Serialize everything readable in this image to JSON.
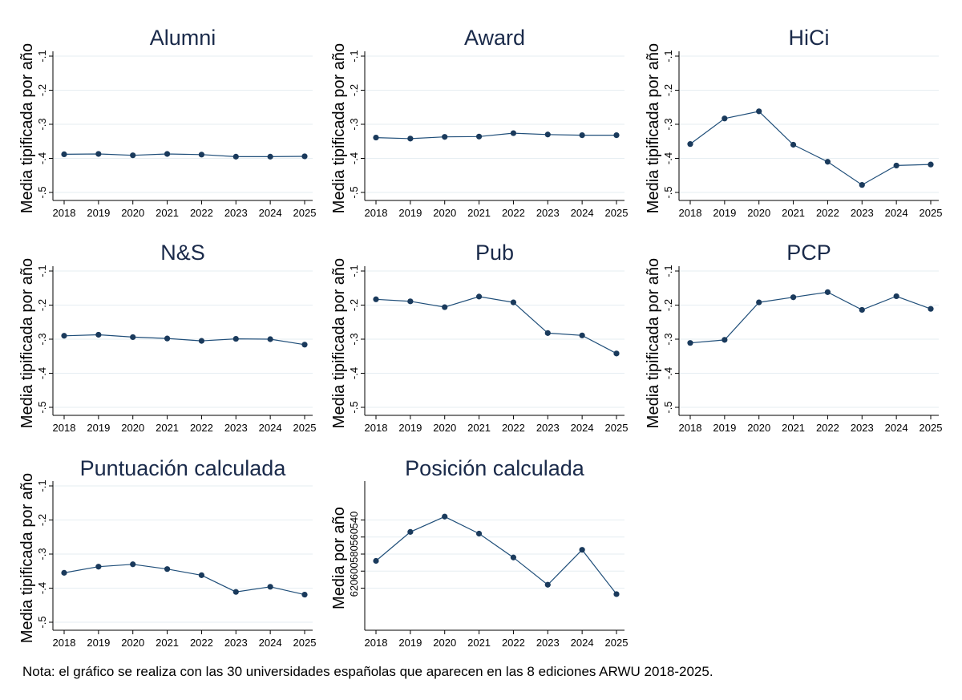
{
  "note": "Nota: el gráfico se realiza con las 30 universidades españolas que aparecen en las 8 ediciones ARWU 2018-2025.",
  "style": {
    "line_color": "#1f4e79",
    "marker_color": "#1a3a5c",
    "grid_color": "#e6eef2",
    "axis_color": "#000000",
    "title_color": "#1a2a4a"
  },
  "chart_data": [
    {
      "type": "line",
      "title": "Alumni",
      "ylabel": "Media tipificada por año",
      "x": [
        2018,
        2019,
        2020,
        2021,
        2022,
        2023,
        2024,
        2025
      ],
      "y": [
        -0.388,
        -0.387,
        -0.391,
        -0.387,
        -0.389,
        -0.395,
        -0.395,
        -0.394
      ],
      "ylim": [
        -0.5,
        -0.1
      ],
      "yticks": [
        -0.5,
        -0.4,
        -0.3,
        -0.2,
        -0.1
      ],
      "yticklabels": [
        "-.5",
        "-.4",
        "-.3",
        "-.2",
        "-.1"
      ],
      "y_reversed": false,
      "grid": true
    },
    {
      "type": "line",
      "title": "Award",
      "ylabel": "Media tipificada por año",
      "x": [
        2018,
        2019,
        2020,
        2021,
        2022,
        2023,
        2024,
        2025
      ],
      "y": [
        -0.339,
        -0.342,
        -0.337,
        -0.336,
        -0.326,
        -0.33,
        -0.332,
        -0.332
      ],
      "ylim": [
        -0.5,
        -0.1
      ],
      "yticks": [
        -0.5,
        -0.4,
        -0.3,
        -0.2,
        -0.1
      ],
      "yticklabels": [
        "-.5",
        "-.4",
        "-.3",
        "-.2",
        "-.1"
      ],
      "y_reversed": false,
      "grid": true
    },
    {
      "type": "line",
      "title": "HiCi",
      "ylabel": "Media tipificada por año",
      "x": [
        2018,
        2019,
        2020,
        2021,
        2022,
        2023,
        2024,
        2025
      ],
      "y": [
        -0.358,
        -0.283,
        -0.262,
        -0.36,
        -0.41,
        -0.478,
        -0.421,
        -0.418
      ],
      "ylim": [
        -0.5,
        -0.1
      ],
      "yticks": [
        -0.5,
        -0.4,
        -0.3,
        -0.2,
        -0.1
      ],
      "yticklabels": [
        "-.5",
        "-.4",
        "-.3",
        "-.2",
        "-.1"
      ],
      "y_reversed": false,
      "grid": true
    },
    {
      "type": "line",
      "title": "N&S",
      "ylabel": "Media tipificada por año",
      "x": [
        2018,
        2019,
        2020,
        2021,
        2022,
        2023,
        2024,
        2025
      ],
      "y": [
        -0.29,
        -0.287,
        -0.294,
        -0.298,
        -0.305,
        -0.299,
        -0.3,
        -0.316
      ],
      "ylim": [
        -0.5,
        -0.1
      ],
      "yticks": [
        -0.5,
        -0.4,
        -0.3,
        -0.2,
        -0.1
      ],
      "yticklabels": [
        "-.5",
        "-.4",
        "-.3",
        "-.2",
        "-.1"
      ],
      "y_reversed": false,
      "grid": true
    },
    {
      "type": "line",
      "title": "Pub",
      "ylabel": "Media tipificada por año",
      "x": [
        2018,
        2019,
        2020,
        2021,
        2022,
        2023,
        2024,
        2025
      ],
      "y": [
        -0.183,
        -0.189,
        -0.206,
        -0.175,
        -0.192,
        -0.282,
        -0.289,
        -0.342
      ],
      "ylim": [
        -0.5,
        -0.1
      ],
      "yticks": [
        -0.5,
        -0.4,
        -0.3,
        -0.2,
        -0.1
      ],
      "yticklabels": [
        "-.5",
        "-.4",
        "-.3",
        "-.2",
        "-.1"
      ],
      "y_reversed": false,
      "grid": true
    },
    {
      "type": "line",
      "title": "PCP",
      "ylabel": "Media tipificada por año",
      "x": [
        2018,
        2019,
        2020,
        2021,
        2022,
        2023,
        2024,
        2025
      ],
      "y": [
        -0.311,
        -0.302,
        -0.192,
        -0.177,
        -0.162,
        -0.214,
        -0.174,
        -0.211
      ],
      "ylim": [
        -0.5,
        -0.1
      ],
      "yticks": [
        -0.5,
        -0.4,
        -0.3,
        -0.2,
        -0.1
      ],
      "yticklabels": [
        "-.5",
        "-.4",
        "-.3",
        "-.2",
        "-.1"
      ],
      "y_reversed": false,
      "grid": true
    },
    {
      "type": "line",
      "title": "Puntuación calculada",
      "ylabel": "Media tipificada por año",
      "x": [
        2018,
        2019,
        2020,
        2021,
        2022,
        2023,
        2024,
        2025
      ],
      "y": [
        -0.355,
        -0.337,
        -0.33,
        -0.344,
        -0.362,
        -0.411,
        -0.396,
        -0.419
      ],
      "ylim": [
        -0.5,
        -0.1
      ],
      "yticks": [
        -0.5,
        -0.4,
        -0.3,
        -0.2,
        -0.1
      ],
      "yticklabels": [
        "-.5",
        "-.4",
        "-.3",
        "-.2",
        "-.1"
      ],
      "y_reversed": false,
      "grid": true
    },
    {
      "type": "line",
      "title": "Posición calculada",
      "ylabel": "Media por año",
      "x": [
        2018,
        2019,
        2020,
        2021,
        2022,
        2023,
        2024,
        2025
      ],
      "y": [
        588,
        554,
        536,
        556,
        584,
        616,
        575,
        627
      ],
      "ylim": [
        500,
        660
      ],
      "yticks": [
        540,
        560,
        580,
        600,
        620
      ],
      "yticklabels": [
        "540",
        "560",
        "580",
        "600",
        "620"
      ],
      "y_reversed": true,
      "grid": true
    }
  ]
}
